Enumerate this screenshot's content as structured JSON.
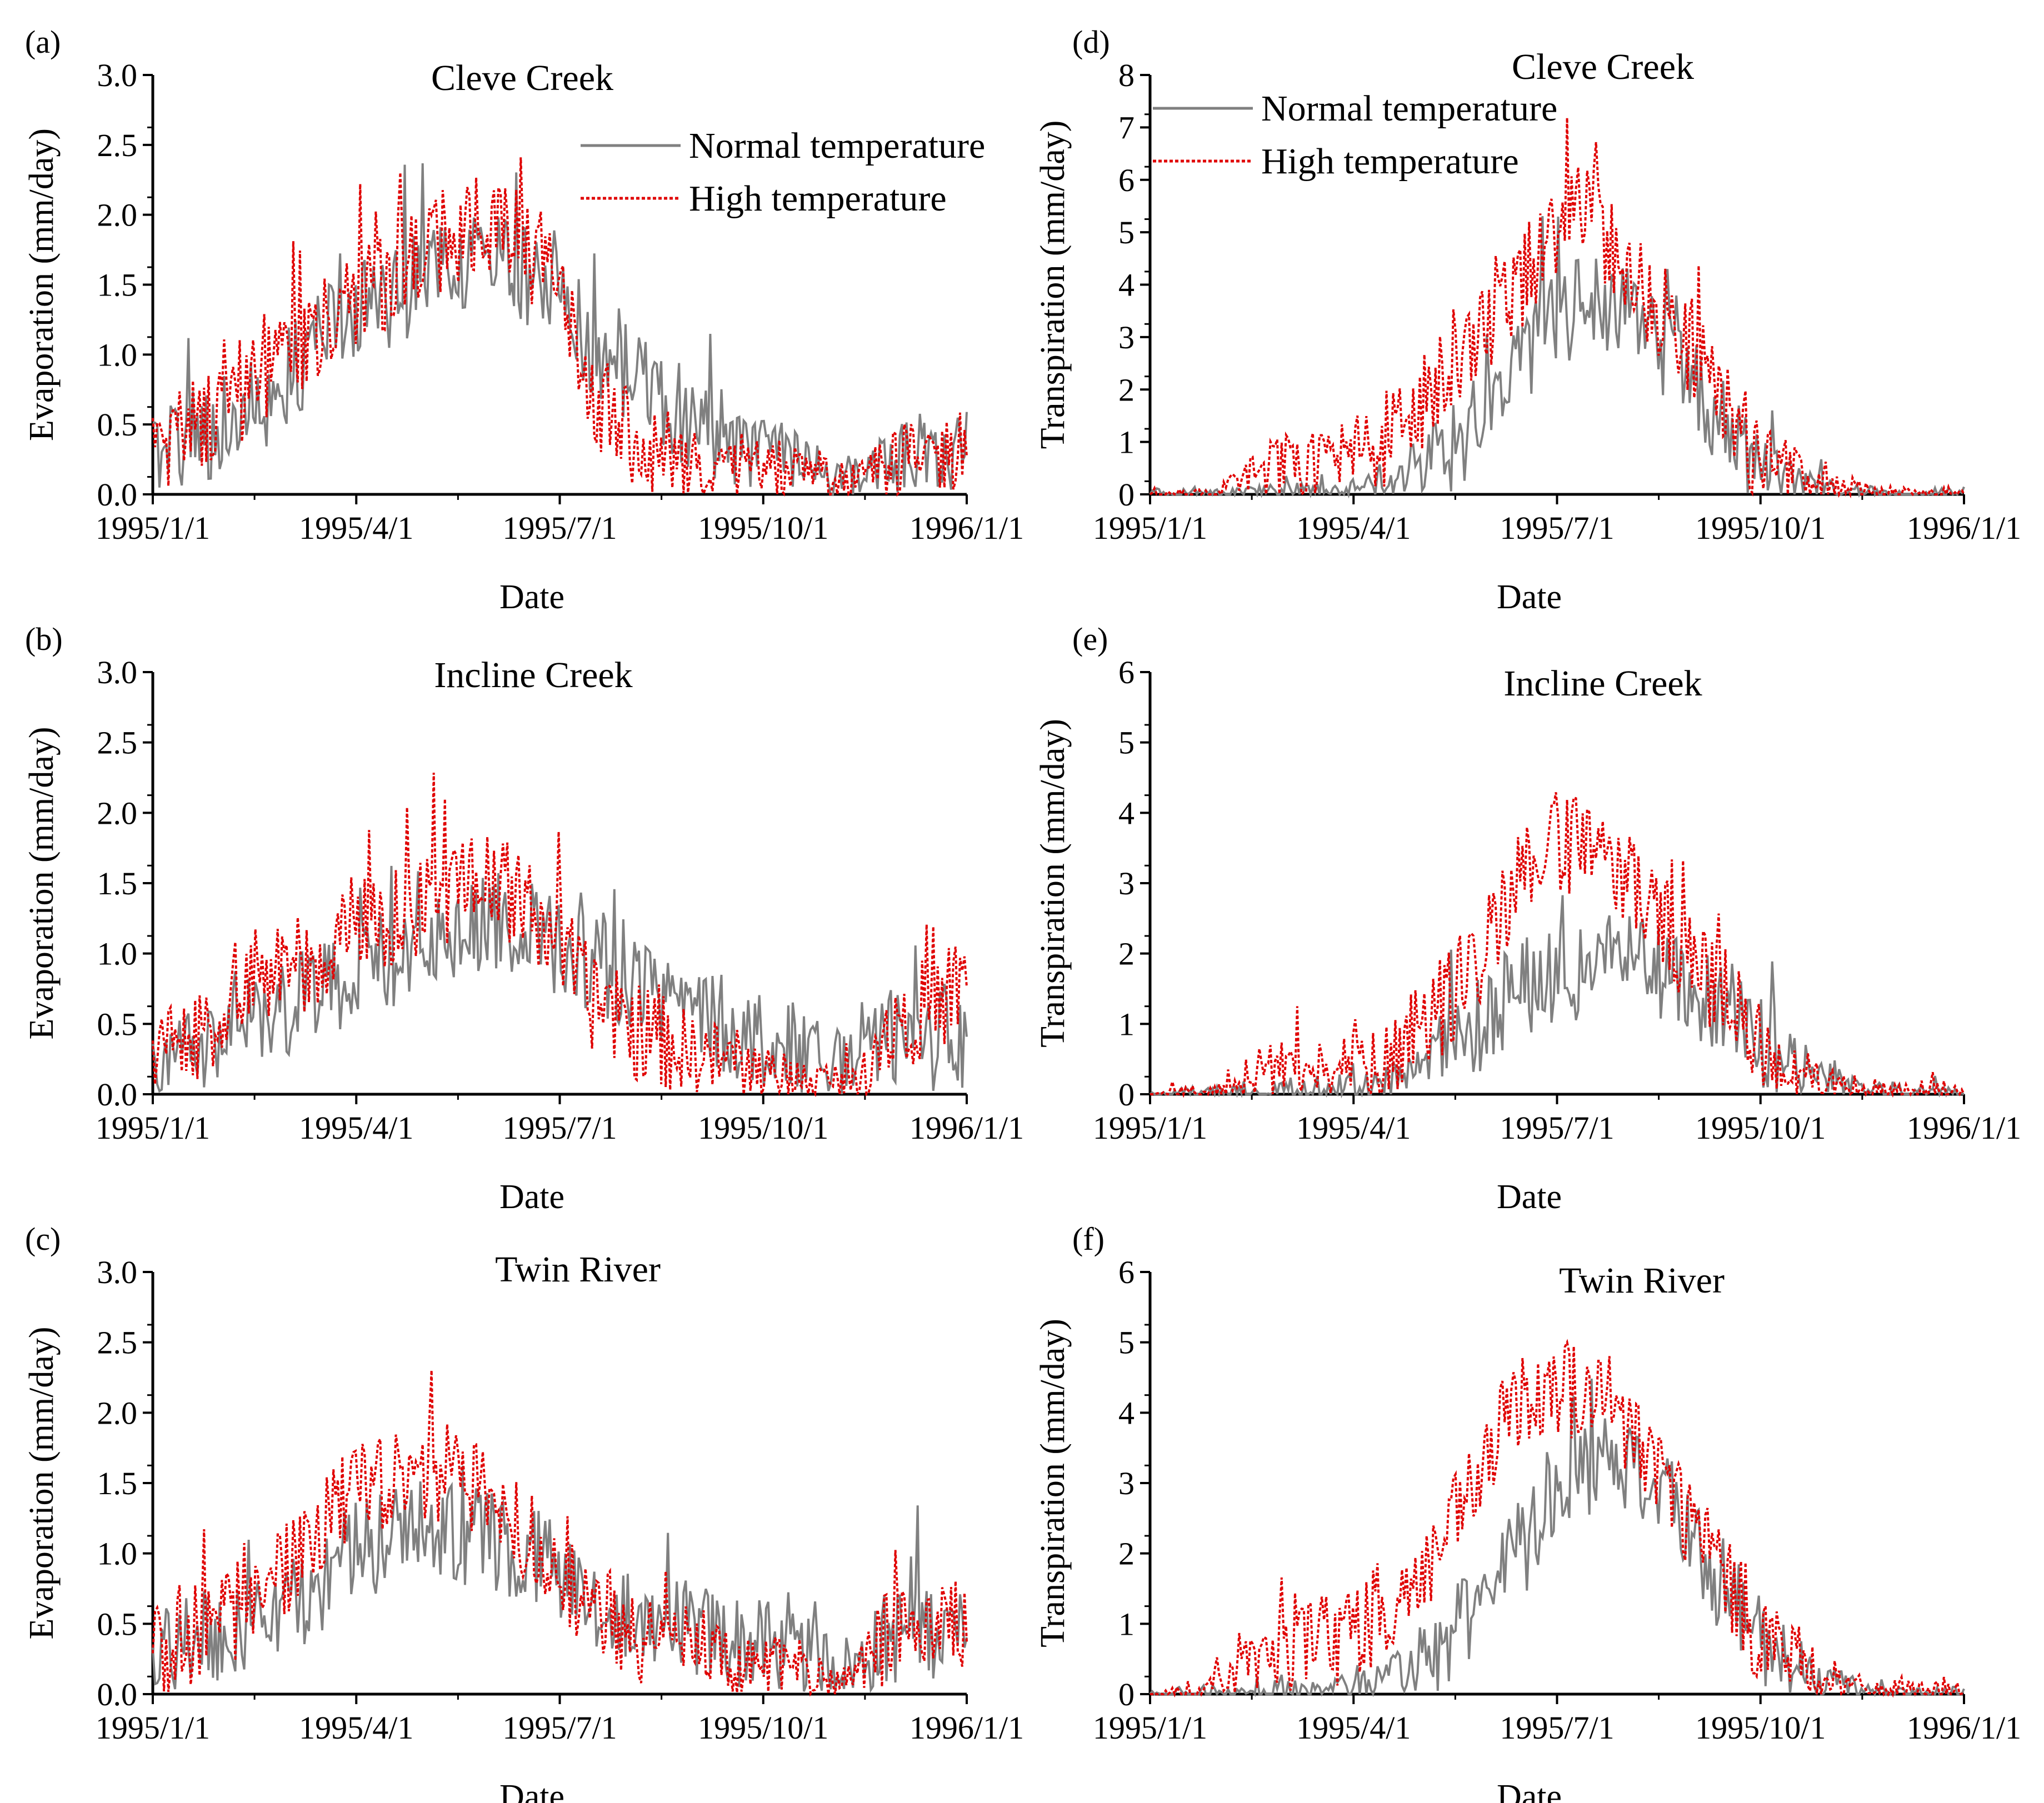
{
  "figure": {
    "series_names": [
      "Normal temperature",
      "High temperature"
    ],
    "series_colors": {
      "Normal temperature": "#808080",
      "High temperature": "#e00000"
    }
  },
  "chart_data": [
    {
      "panel": "(a)",
      "type": "line",
      "title": "Cleve Creek",
      "xlabel": "Date",
      "ylabel": "Evaporation (mm/day)",
      "x_ticks": [
        "1995/1/1",
        "1995/4/1",
        "1995/7/1",
        "1995/10/1",
        "1996/1/1"
      ],
      "ylim": [
        0,
        3.0
      ],
      "y_ticks": [
        "0.0",
        "0.5",
        "1.0",
        "1.5",
        "2.0",
        "2.5",
        "3.0"
      ],
      "legend": "top-right",
      "x_days": [
        0,
        15,
        30,
        45,
        60,
        75,
        90,
        105,
        120,
        135,
        150,
        165,
        180,
        195,
        210,
        225,
        240,
        255,
        270,
        285,
        300,
        315,
        330,
        345,
        360,
        365
      ],
      "series": [
        {
          "name": "Normal temperature",
          "values": [
            0.3,
            0.42,
            0.48,
            0.6,
            0.85,
            1.1,
            1.3,
            1.35,
            1.55,
            1.65,
            1.75,
            1.6,
            1.45,
            1.1,
            0.9,
            0.7,
            0.55,
            0.45,
            0.3,
            0.25,
            0.15,
            0.12,
            0.25,
            0.3,
            0.28,
            0.3
          ]
        },
        {
          "name": "High temperature",
          "values": [
            0.35,
            0.45,
            0.55,
            0.75,
            1.0,
            1.2,
            1.4,
            1.5,
            1.7,
            1.85,
            1.95,
            1.8,
            1.55,
            0.8,
            0.45,
            0.3,
            0.25,
            0.25,
            0.2,
            0.18,
            0.12,
            0.1,
            0.2,
            0.28,
            0.3,
            0.35
          ]
        }
      ]
    },
    {
      "panel": "(b)",
      "type": "line",
      "title": "Incline Creek",
      "xlabel": "Date",
      "ylabel": "Evaporation (mm/day)",
      "x_ticks": [
        "1995/1/1",
        "1995/4/1",
        "1995/7/1",
        "1995/10/1",
        "1996/1/1"
      ],
      "ylim": [
        0,
        3.0
      ],
      "y_ticks": [
        "0.0",
        "0.5",
        "1.0",
        "1.5",
        "2.0",
        "2.5",
        "3.0"
      ],
      "legend": "none",
      "x_days": [
        0,
        15,
        30,
        45,
        60,
        75,
        90,
        105,
        120,
        135,
        150,
        165,
        180,
        195,
        210,
        225,
        240,
        255,
        270,
        285,
        300,
        315,
        330,
        345,
        360,
        365
      ],
      "series": [
        {
          "name": "Normal temperature",
          "values": [
            0.25,
            0.3,
            0.4,
            0.55,
            0.6,
            0.7,
            0.85,
            0.95,
            1.1,
            1.15,
            1.25,
            1.2,
            1.05,
            0.95,
            0.85,
            0.7,
            0.6,
            0.5,
            0.4,
            0.35,
            0.25,
            0.2,
            0.4,
            0.4,
            0.35,
            0.3
          ]
        },
        {
          "name": "High temperature",
          "values": [
            0.3,
            0.4,
            0.55,
            0.75,
            0.85,
            1.0,
            1.2,
            1.25,
            1.35,
            1.45,
            1.5,
            1.35,
            1.15,
            0.7,
            0.5,
            0.4,
            0.3,
            0.25,
            0.18,
            0.12,
            0.1,
            0.1,
            0.5,
            0.6,
            0.75,
            0.8
          ]
        }
      ]
    },
    {
      "panel": "(c)",
      "type": "line",
      "title": "Twin River",
      "xlabel": "Date",
      "ylabel": "Evaporation (mm/day)",
      "x_ticks": [
        "1995/1/1",
        "1995/4/1",
        "1995/7/1",
        "1995/10/1",
        "1996/1/1"
      ],
      "ylim": [
        0,
        3.0
      ],
      "y_ticks": [
        "0.0",
        "0.5",
        "1.0",
        "1.5",
        "2.0",
        "2.5",
        "3.0"
      ],
      "legend": "none",
      "x_days": [
        0,
        15,
        30,
        45,
        60,
        75,
        90,
        105,
        120,
        135,
        150,
        165,
        180,
        195,
        210,
        225,
        240,
        255,
        270,
        285,
        300,
        315,
        330,
        345,
        360,
        365
      ],
      "series": [
        {
          "name": "Normal temperature",
          "values": [
            0.3,
            0.35,
            0.4,
            0.45,
            0.6,
            0.8,
            1.0,
            1.1,
            1.2,
            1.15,
            1.1,
            1.0,
            0.9,
            0.7,
            0.6,
            0.5,
            0.45,
            0.4,
            0.35,
            0.3,
            0.25,
            0.2,
            0.4,
            0.5,
            0.4,
            0.35
          ]
        },
        {
          "name": "High temperature",
          "values": [
            0.3,
            0.4,
            0.55,
            0.65,
            0.9,
            1.2,
            1.4,
            1.5,
            1.6,
            1.55,
            1.4,
            1.2,
            0.95,
            0.6,
            0.45,
            0.38,
            0.32,
            0.28,
            0.22,
            0.18,
            0.15,
            0.12,
            0.4,
            0.55,
            0.45,
            0.4
          ]
        }
      ]
    },
    {
      "panel": "(d)",
      "type": "line",
      "title": "Cleve Creek",
      "xlabel": "Date",
      "ylabel": "Transpiration (mm/day)",
      "x_ticks": [
        "1995/1/1",
        "1995/4/1",
        "1995/7/1",
        "1995/10/1",
        "1996/1/1"
      ],
      "ylim": [
        0,
        8
      ],
      "y_ticks": [
        "0",
        "1",
        "2",
        "3",
        "4",
        "5",
        "6",
        "7",
        "8"
      ],
      "legend": "top-left",
      "x_days": [
        0,
        15,
        30,
        45,
        60,
        75,
        90,
        105,
        120,
        135,
        150,
        165,
        180,
        195,
        210,
        225,
        240,
        255,
        270,
        285,
        300,
        315,
        330,
        345,
        360,
        365
      ],
      "series": [
        {
          "name": "Normal temperature",
          "values": [
            0.0,
            0.0,
            0.0,
            0.0,
            0.05,
            0.05,
            0.1,
            0.2,
            0.5,
            0.9,
            1.5,
            2.5,
            3.3,
            3.7,
            3.6,
            3.0,
            2.4,
            1.5,
            0.6,
            0.3,
            0.1,
            0.05,
            0.0,
            0.0,
            0.0,
            0.0
          ]
        },
        {
          "name": "High temperature",
          "values": [
            0.0,
            0.0,
            0.0,
            0.3,
            0.6,
            0.6,
            0.7,
            1.0,
            1.6,
            2.3,
            3.0,
            4.0,
            5.0,
            5.5,
            4.6,
            3.7,
            3.0,
            2.0,
            0.8,
            0.5,
            0.2,
            0.1,
            0.0,
            0.0,
            0.0,
            0.0
          ]
        }
      ]
    },
    {
      "panel": "(e)",
      "type": "line",
      "title": "Incline Creek",
      "xlabel": "Date",
      "ylabel": "Transpiration (mm/day)",
      "x_ticks": [
        "1995/1/1",
        "1995/4/1",
        "1995/7/1",
        "1995/10/1",
        "1996/1/1"
      ],
      "ylim": [
        0,
        6
      ],
      "y_ticks": [
        "0",
        "1",
        "2",
        "3",
        "4",
        "5",
        "6"
      ],
      "legend": "none",
      "x_days": [
        0,
        15,
        30,
        45,
        60,
        75,
        90,
        105,
        120,
        135,
        150,
        165,
        180,
        195,
        210,
        225,
        240,
        255,
        270,
        285,
        300,
        315,
        330,
        345,
        360,
        365
      ],
      "series": [
        {
          "name": "Normal temperature",
          "values": [
            0.0,
            0.0,
            0.0,
            0.0,
            0.05,
            0.05,
            0.1,
            0.15,
            0.3,
            0.7,
            1.0,
            1.5,
            1.6,
            1.7,
            1.9,
            1.8,
            1.6,
            1.3,
            0.9,
            0.5,
            0.3,
            0.1,
            0.05,
            0.0,
            0.0,
            0.0
          ]
        },
        {
          "name": "High temperature",
          "values": [
            0.0,
            0.0,
            0.0,
            0.3,
            0.4,
            0.3,
            0.4,
            0.5,
            0.8,
            1.4,
            2.0,
            3.0,
            3.6,
            3.5,
            3.3,
            2.6,
            2.0,
            1.5,
            0.8,
            0.4,
            0.2,
            0.1,
            0.05,
            0.05,
            0.05,
            0.0
          ]
        }
      ]
    },
    {
      "panel": "(f)",
      "type": "line",
      "title": "Twin River",
      "xlabel": "Date",
      "ylabel": "Transpiration (mm/day)",
      "x_ticks": [
        "1995/1/1",
        "1995/4/1",
        "1995/7/1",
        "1995/10/1",
        "1996/1/1"
      ],
      "ylim": [
        0,
        6
      ],
      "y_ticks": [
        "0",
        "1",
        "2",
        "3",
        "4",
        "5",
        "6"
      ],
      "legend": "none",
      "x_days": [
        0,
        15,
        30,
        45,
        60,
        75,
        90,
        105,
        120,
        135,
        150,
        165,
        180,
        195,
        210,
        225,
        240,
        255,
        270,
        285,
        300,
        315,
        330,
        345,
        360,
        365
      ],
      "series": [
        {
          "name": "Normal temperature",
          "values": [
            0.0,
            0.0,
            0.0,
            0.0,
            0.05,
            0.05,
            0.1,
            0.2,
            0.4,
            0.8,
            1.3,
            2.0,
            2.6,
            3.1,
            3.3,
            3.0,
            2.5,
            1.6,
            0.9,
            0.5,
            0.2,
            0.1,
            0.0,
            0.0,
            0.0,
            0.0
          ]
        },
        {
          "name": "High temperature",
          "values": [
            0.0,
            0.0,
            0.1,
            0.4,
            0.6,
            0.7,
            0.9,
            1.2,
            1.6,
            2.3,
            3.2,
            4.2,
            4.5,
            4.2,
            3.9,
            3.4,
            2.6,
            1.8,
            1.0,
            0.6,
            0.3,
            0.1,
            0.05,
            0.05,
            0.05,
            0.0
          ]
        }
      ]
    }
  ]
}
